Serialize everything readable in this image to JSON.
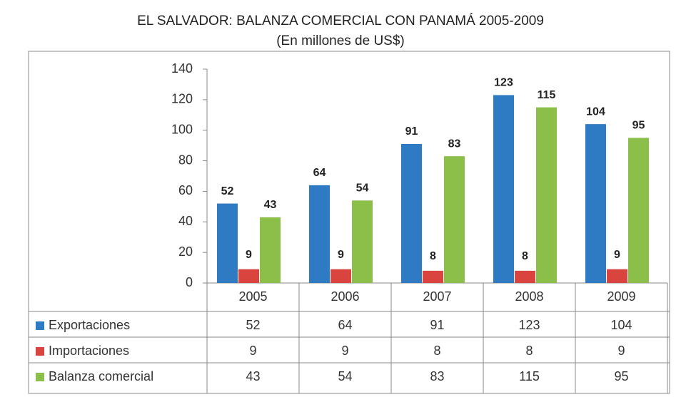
{
  "chart_data": {
    "type": "bar",
    "title": "EL SALVADOR: BALANZA COMERCIAL CON PANAMÁ 2005-2009",
    "subtitle": "(En millones de US$)",
    "categories": [
      "2005",
      "2006",
      "2007",
      "2008",
      "2009"
    ],
    "series": [
      {
        "name": "Exportaciones",
        "color": "#2e7bc4",
        "values": [
          52,
          64,
          91,
          123,
          104
        ]
      },
      {
        "name": "Importaciones",
        "color": "#d9443f",
        "values": [
          9,
          9,
          8,
          8,
          9
        ]
      },
      {
        "name": "Balanza comercial",
        "color": "#8cbf4a",
        "values": [
          43,
          54,
          83,
          115,
          95
        ]
      }
    ],
    "ylim": [
      0,
      140
    ],
    "yticks": [
      0,
      20,
      40,
      60,
      80,
      100,
      120,
      140
    ],
    "grid": false
  }
}
